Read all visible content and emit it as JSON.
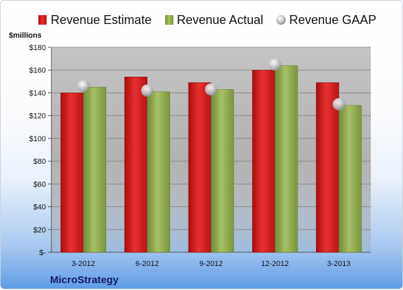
{
  "chart_data": {
    "type": "bar",
    "categories": [
      "3-2012",
      "6-2012",
      "9-2012",
      "12-2012",
      "3-2013"
    ],
    "series": [
      {
        "name": "Revenue Estimate",
        "kind": "bar",
        "color": "#d42020",
        "values": [
          140,
          154,
          149,
          160,
          149
        ]
      },
      {
        "name": "Revenue Actual",
        "kind": "bar",
        "color": "#8eaa4e",
        "values": [
          145,
          141,
          143,
          164,
          129
        ]
      },
      {
        "name": "Revenue GAAP",
        "kind": "scatter",
        "color": "#b8bcc2",
        "values": [
          146,
          142,
          143,
          165,
          130
        ]
      }
    ],
    "ylabel": "$millions",
    "ylim": [
      0,
      180
    ],
    "yticks": [
      0,
      20,
      40,
      60,
      80,
      100,
      120,
      140,
      160,
      180
    ],
    "ytick_labels": [
      "$-",
      "$20",
      "$40",
      "$60",
      "$80",
      "$100",
      "$120",
      "$140",
      "$160",
      "$180"
    ],
    "grid": true,
    "legend_position": "top",
    "source_label": "MicroStrategy"
  }
}
